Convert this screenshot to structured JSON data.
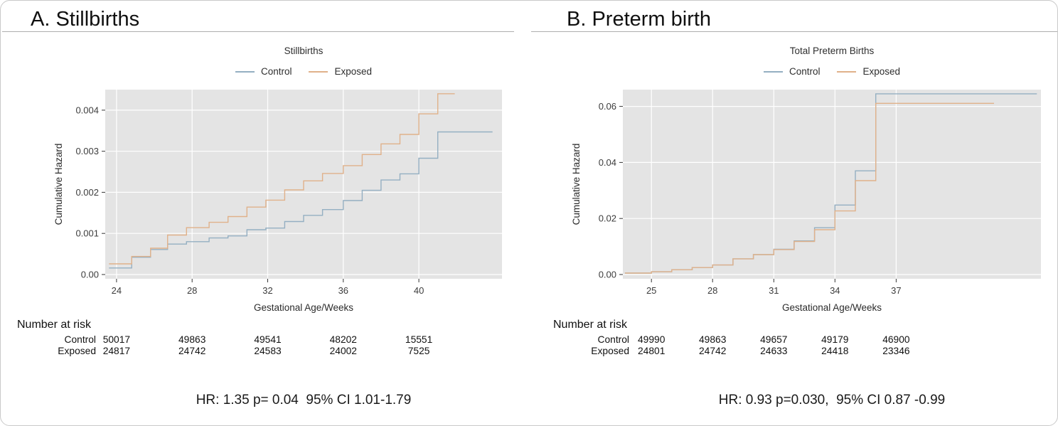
{
  "figure": {
    "background": "#ffffff",
    "border_color": "#c9c9c9",
    "panel_background": "#e4e4e4",
    "gridline_color": "#ffffff"
  },
  "chart_data": [
    {
      "type": "line",
      "variant": "step-cumulative-hazard",
      "section_title": "A. Stillbirths",
      "title": "Stillbirths",
      "xlabel": "Gestational Age/Weeks",
      "ylabel": "Cumulative Hazard",
      "xlim": [
        23.4,
        44.4
      ],
      "ylim": [
        0,
        0.0045
      ],
      "x_ticks": [
        24,
        28,
        32,
        36,
        40
      ],
      "y_ticks": [
        0,
        0.001,
        0.002,
        0.003,
        0.004
      ],
      "y_tick_labels": [
        "0.00",
        "0.001",
        "0.002",
        "0.003",
        "0.004"
      ],
      "grid": true,
      "legend_position": "top",
      "series": [
        {
          "name": "Control",
          "color": "#94afc2",
          "steps": [
            [
              23.6,
              0.00016
            ],
            [
              24.8,
              0.00042
            ],
            [
              25.8,
              0.00061
            ],
            [
              26.7,
              0.00074
            ],
            [
              27.7,
              0.0008
            ],
            [
              28.9,
              0.00089
            ],
            [
              29.9,
              0.00094
            ],
            [
              30.9,
              0.00109
            ],
            [
              31.9,
              0.00113
            ],
            [
              32.9,
              0.00129
            ],
            [
              33.9,
              0.00144
            ],
            [
              34.9,
              0.00158
            ],
            [
              36.0,
              0.0018
            ],
            [
              37.0,
              0.00205
            ],
            [
              38.0,
              0.0023
            ],
            [
              39.0,
              0.00245
            ],
            [
              40.0,
              0.00283
            ],
            [
              41.0,
              0.00347
            ]
          ],
          "end_x": 43.9
        },
        {
          "name": "Exposed",
          "color": "#e0b18a",
          "steps": [
            [
              23.6,
              0.00026
            ],
            [
              24.8,
              0.00044
            ],
            [
              25.8,
              0.00064
            ],
            [
              26.7,
              0.00096
            ],
            [
              27.7,
              0.00114
            ],
            [
              28.9,
              0.00127
            ],
            [
              29.9,
              0.00141
            ],
            [
              30.9,
              0.00164
            ],
            [
              31.9,
              0.00181
            ],
            [
              32.9,
              0.00206
            ],
            [
              33.9,
              0.00228
            ],
            [
              34.9,
              0.00246
            ],
            [
              36.0,
              0.00265
            ],
            [
              37.0,
              0.00292
            ],
            [
              38.0,
              0.00318
            ],
            [
              39.0,
              0.00341
            ],
            [
              40.0,
              0.00391
            ],
            [
              41.0,
              0.0044
            ]
          ],
          "end_x": 41.9
        }
      ],
      "number_at_risk": {
        "title": "Number at risk",
        "rows": [
          {
            "label": "Control",
            "values": [
              "50017",
              "49863",
              "49541",
              "48202",
              "15551"
            ]
          },
          {
            "label": "Exposed",
            "values": [
              "24817",
              "24742",
              "24583",
              "24002",
              "7525"
            ]
          }
        ]
      },
      "hr_text": "HR: 1.35 p= 0.04  95% CI 1.01-1.79"
    },
    {
      "type": "line",
      "variant": "step-cumulative-hazard",
      "section_title": "B. Preterm birth",
      "title": "Total Preterm Births",
      "xlabel": "Gestational Age/Weeks",
      "ylabel": "Cumulative Hazard",
      "xlim": [
        23.6,
        44.1
      ],
      "ylim": [
        0,
        0.066
      ],
      "x_ticks": [
        25,
        28,
        31,
        34,
        37
      ],
      "y_ticks": [
        0,
        0.02,
        0.04,
        0.06
      ],
      "y_tick_labels": [
        "0.00",
        "0.02",
        "0.04",
        "0.06"
      ],
      "grid": true,
      "legend_position": "top",
      "series": [
        {
          "name": "Control",
          "color": "#94afc2",
          "steps": [
            [
              23.7,
              0.0005
            ],
            [
              25,
              0.001
            ],
            [
              26,
              0.0017
            ],
            [
              27,
              0.0025
            ],
            [
              28,
              0.0034
            ],
            [
              29,
              0.0056
            ],
            [
              30,
              0.0071
            ],
            [
              31,
              0.009
            ],
            [
              32,
              0.012
            ],
            [
              33,
              0.0167
            ],
            [
              34,
              0.0248
            ],
            [
              35,
              0.037
            ],
            [
              36,
              0.0645
            ]
          ],
          "end_x": 43.9
        },
        {
          "name": "Exposed",
          "color": "#e0b18a",
          "steps": [
            [
              23.7,
              0.0005
            ],
            [
              25,
              0.001
            ],
            [
              26,
              0.0017
            ],
            [
              27,
              0.0025
            ],
            [
              28,
              0.0034
            ],
            [
              29,
              0.0056
            ],
            [
              30,
              0.0071
            ],
            [
              31,
              0.0089
            ],
            [
              32,
              0.0118
            ],
            [
              33,
              0.016
            ],
            [
              34,
              0.0227
            ],
            [
              35,
              0.0335
            ],
            [
              36,
              0.0611
            ]
          ],
          "end_x": 41.8
        }
      ],
      "number_at_risk": {
        "title": "Number at risk",
        "rows": [
          {
            "label": "Control",
            "values": [
              "49990",
              "49863",
              "49657",
              "49179",
              "46900"
            ]
          },
          {
            "label": "Exposed",
            "values": [
              "24801",
              "24742",
              "24633",
              "24418",
              "23346"
            ]
          }
        ]
      },
      "hr_text": "HR: 0.93 p=0.030,  95% CI 0.87 -0.99"
    }
  ]
}
